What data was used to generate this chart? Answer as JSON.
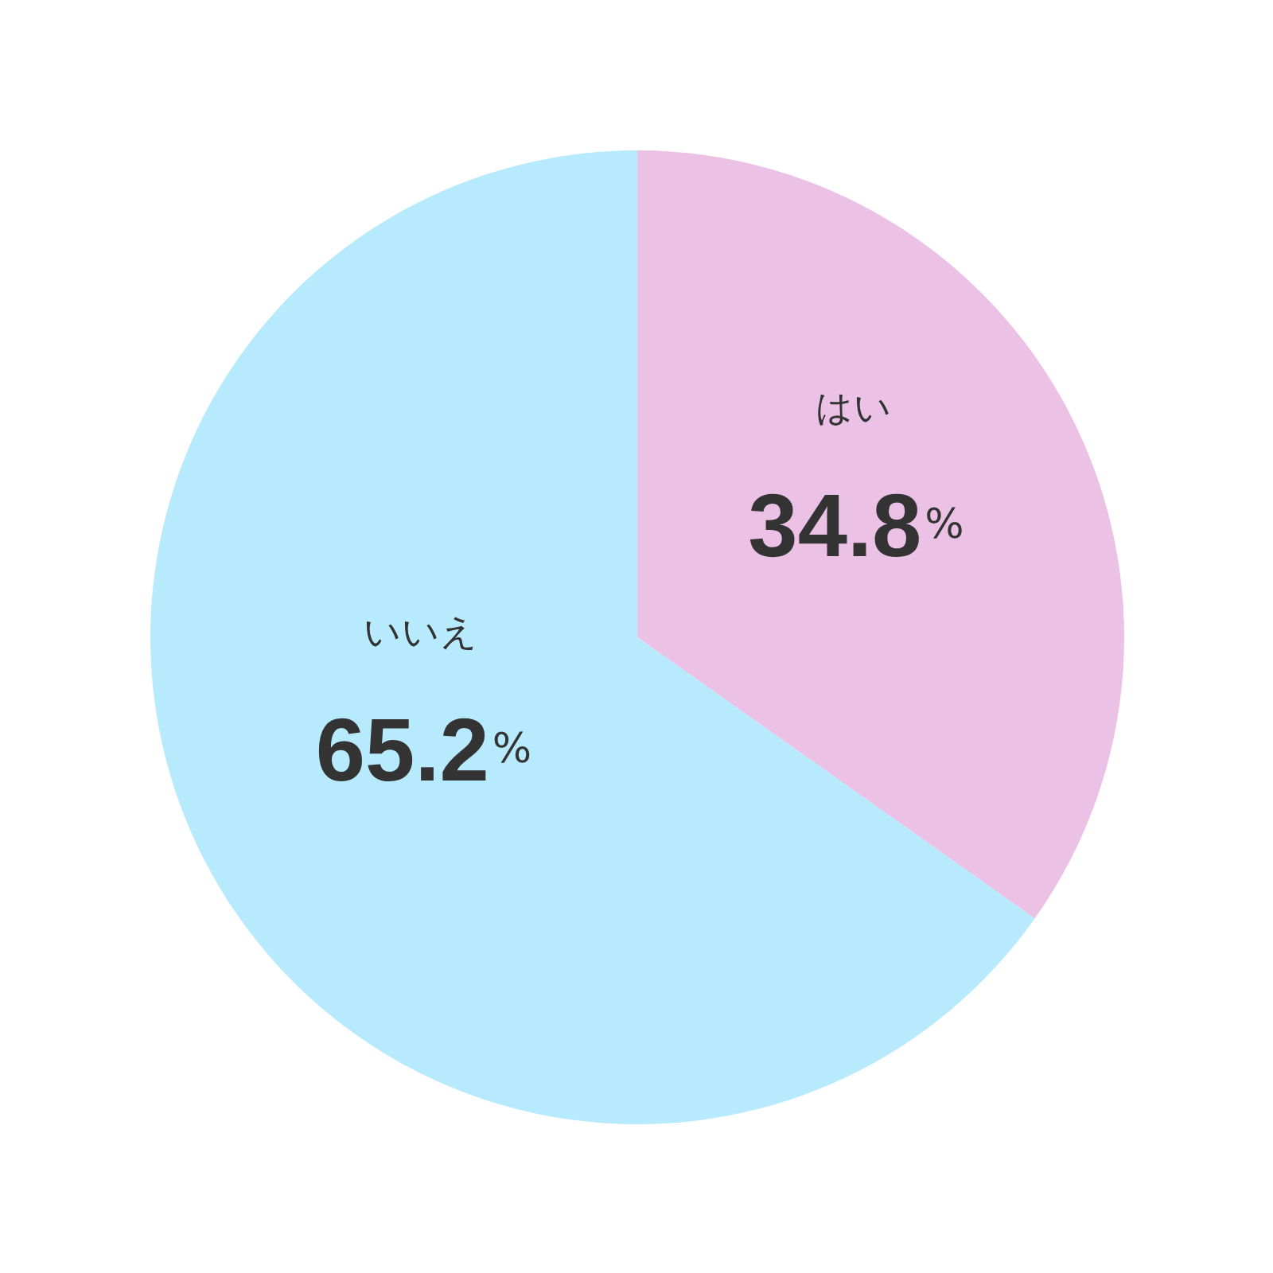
{
  "chart_data": {
    "type": "pie",
    "categories": [
      "はい",
      "いいえ"
    ],
    "values": [
      34.8,
      65.2
    ],
    "colors": [
      "#ecc1e6",
      "#b8eafd"
    ],
    "value_labels": [
      "34.8%",
      "65.2%"
    ]
  }
}
